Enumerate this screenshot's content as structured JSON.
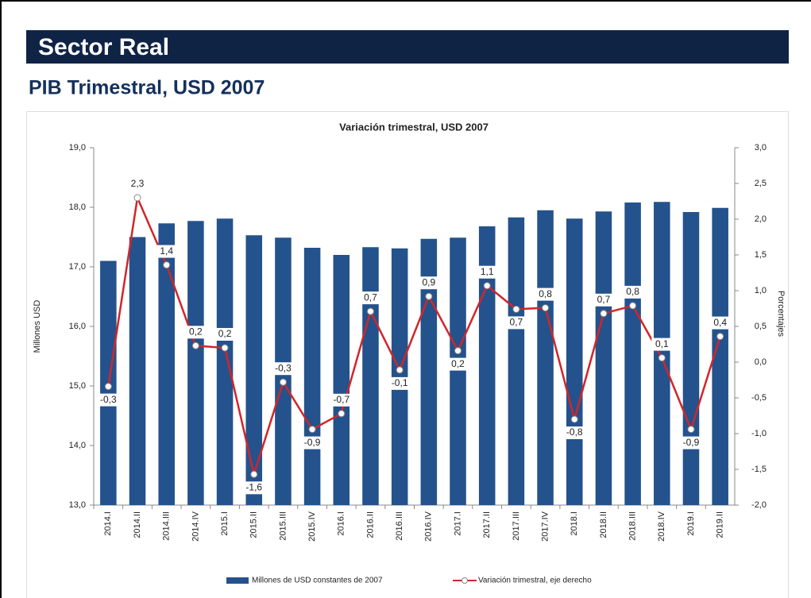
{
  "header": {
    "title": "Sector Real",
    "subtitle": "PIB Trimestral, USD 2007"
  },
  "chart_data": {
    "type": "bar",
    "title": "Variación trimestral, USD 2007",
    "y_label": "Millones USD",
    "y2_label": "Porcentajes",
    "categories": [
      "2014.I",
      "2014.II",
      "2014.III",
      "2014.IV",
      "2015.I",
      "2015.II",
      "2015.III",
      "2015.IV",
      "2016.I",
      "2016.II",
      "2016.III",
      "2016.IV",
      "2017.I",
      "2017.II",
      "2017.III",
      "2017.IV",
      "2018.I",
      "2018.II",
      "2018.III",
      "2018.IV",
      "2019.I",
      "2019.II"
    ],
    "series": [
      {
        "name": "Millones de USD constantes de 2007",
        "type": "bar",
        "color": "#24528c",
        "values": [
          17.1,
          17.5,
          17.73,
          17.77,
          17.81,
          17.53,
          17.49,
          17.32,
          17.2,
          17.33,
          17.31,
          17.47,
          17.49,
          17.68,
          17.83,
          17.95,
          17.81,
          17.93,
          18.08,
          18.09,
          17.92,
          17.99
        ]
      },
      {
        "name": "Variación trimestral, eje derecho",
        "type": "line",
        "axis": "y2",
        "color": "#d0262a",
        "values": [
          -0.34,
          2.3,
          1.36,
          0.23,
          0.2,
          -1.57,
          -0.28,
          -0.94,
          -0.72,
          0.71,
          -0.11,
          0.92,
          0.16,
          1.07,
          0.74,
          0.76,
          -0.8,
          0.68,
          0.79,
          0.06,
          -0.94,
          0.36
        ],
        "value_labels": [
          "-0,3",
          "2,3",
          "1,4",
          "0,2",
          "0,2",
          "-1,6",
          "-0,3",
          "-0,9",
          "-0,7",
          "0,7",
          "-0,1",
          "0,9",
          "0,2",
          "1,1",
          "0,7",
          "0,8",
          "-0,8",
          "0,7",
          "0,8",
          "0,1",
          "-0,9",
          "0,4"
        ]
      }
    ],
    "ylim": [
      13,
      19
    ],
    "yticks": [
      {
        "value": 13,
        "label": "13,0"
      },
      {
        "value": 14,
        "label": "14,0"
      },
      {
        "value": 15,
        "label": "15,0"
      },
      {
        "value": 16,
        "label": "16,0"
      },
      {
        "value": 17,
        "label": "17,0"
      },
      {
        "value": 18,
        "label": "18,0"
      },
      {
        "value": 19,
        "label": "19,0"
      }
    ],
    "y2lim": [
      -2,
      3
    ],
    "y2ticks": [
      {
        "value": -2,
        "label": "-2,0"
      },
      {
        "value": -1.5,
        "label": "-1,5"
      },
      {
        "value": -1,
        "label": "-1,0"
      },
      {
        "value": -0.5,
        "label": "-0,5"
      },
      {
        "value": 0,
        "label": "0,0"
      },
      {
        "value": 0.5,
        "label": "0,5"
      },
      {
        "value": 1,
        "label": "1,0"
      },
      {
        "value": 1.5,
        "label": "1,5"
      },
      {
        "value": 2,
        "label": "2,0"
      },
      {
        "value": 2.5,
        "label": "2,5"
      },
      {
        "value": 3,
        "label": "3,0"
      }
    ],
    "legend": "bottom"
  }
}
